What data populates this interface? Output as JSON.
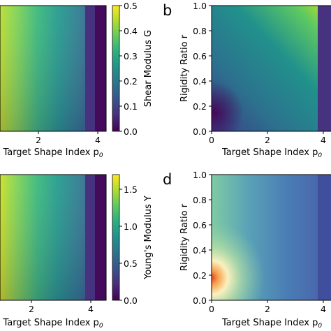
{
  "chart_data": [
    {
      "panel": "",
      "type": "heatmap",
      "xlabel": "Target Shape Index p",
      "xlabel_sub": "0",
      "xticks": [
        "2",
        "4"
      ],
      "colorbar": {
        "label": "Shear Modulus G",
        "ticks": [
          "0.0",
          "0.1",
          "0.2",
          "0.3",
          "0.4",
          "0.5"
        ],
        "range": [
          0,
          0.5
        ],
        "colormap": "viridis"
      },
      "description_values": {
        "transition_p0": 3.81
      }
    },
    {
      "panel": "b",
      "type": "heatmap",
      "xlabel": "Target Shape Index p",
      "xlabel_sub": "0",
      "ylabel": "Rigidity Ratio r",
      "xticks": [
        "0",
        "2",
        "4"
      ],
      "yticks": [
        "0.0",
        "0.2",
        "0.4",
        "0.6",
        "0.8",
        "1.0"
      ],
      "xlim": [
        0,
        4.3
      ],
      "ylim": [
        0,
        1
      ],
      "colormap": "viridis"
    },
    {
      "panel": "",
      "type": "heatmap",
      "xlabel": "Target Shape Index p",
      "xlabel_sub": "0",
      "xticks": [
        "2",
        "4"
      ],
      "colorbar": {
        "label": "Young's Modulus Y",
        "ticks": [
          "0.0",
          "0.5",
          "1.0",
          "1.5"
        ],
        "range": [
          0,
          1.7
        ],
        "colormap": "viridis"
      }
    },
    {
      "panel": "d",
      "type": "heatmap",
      "xlabel": "Target Shape Index p",
      "xlabel_sub": "0",
      "ylabel": "Rigidity Ratio r",
      "xticks": [
        "0",
        "2",
        "4"
      ],
      "yticks": [
        "0.0",
        "0.2",
        "0.4",
        "0.6",
        "0.8",
        "1.0"
      ],
      "xlim": [
        0,
        4.3
      ],
      "ylim": [
        0,
        1
      ],
      "colormap": "spectral-like"
    }
  ],
  "colors": {
    "viridis": [
      "#440154",
      "#472d7b",
      "#3b528b",
      "#2c728e",
      "#21918c",
      "#28ae80",
      "#5ec962",
      "#addc30",
      "#fde725"
    ],
    "red_hot": "#e64030",
    "orange": "#f6a04a",
    "cream": "#fbf0c0"
  }
}
